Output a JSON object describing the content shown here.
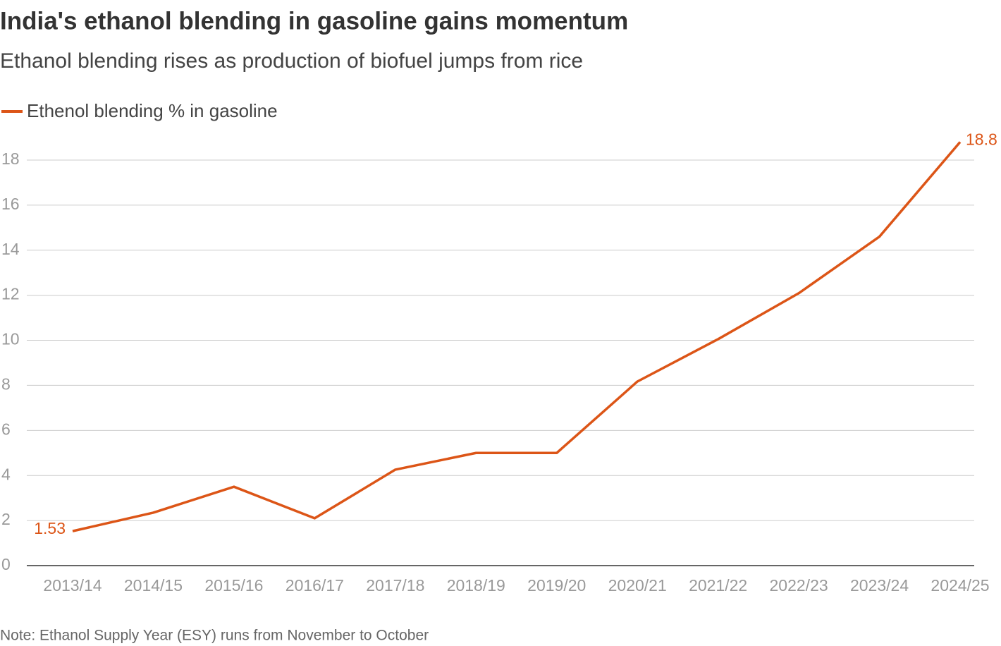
{
  "chart_data": {
    "type": "line",
    "title": "India's ethanol blending in gasoline gains momentum",
    "subtitle": "Ethanol blending rises as production of biofuel jumps from rice",
    "note": "Note: Ethanol Supply Year (ESY) runs from November to October",
    "categories": [
      "2013/14",
      "2014/15",
      "2015/16",
      "2016/17",
      "2017/18",
      "2018/19",
      "2019/20",
      "2020/21",
      "2021/22",
      "2022/23",
      "2023/24",
      "2024/25"
    ],
    "series": [
      {
        "name": "Ethenol blending % in gasoline",
        "color": "#dc5517",
        "values": [
          1.53,
          2.35,
          3.5,
          2.1,
          4.26,
          5.0,
          5.0,
          8.17,
          10.05,
          12.09,
          14.6,
          18.8
        ]
      }
    ],
    "ylim": [
      0,
      19
    ],
    "yticks": [
      0,
      2,
      4,
      6,
      8,
      10,
      12,
      14,
      16,
      18
    ],
    "grid": true
  }
}
